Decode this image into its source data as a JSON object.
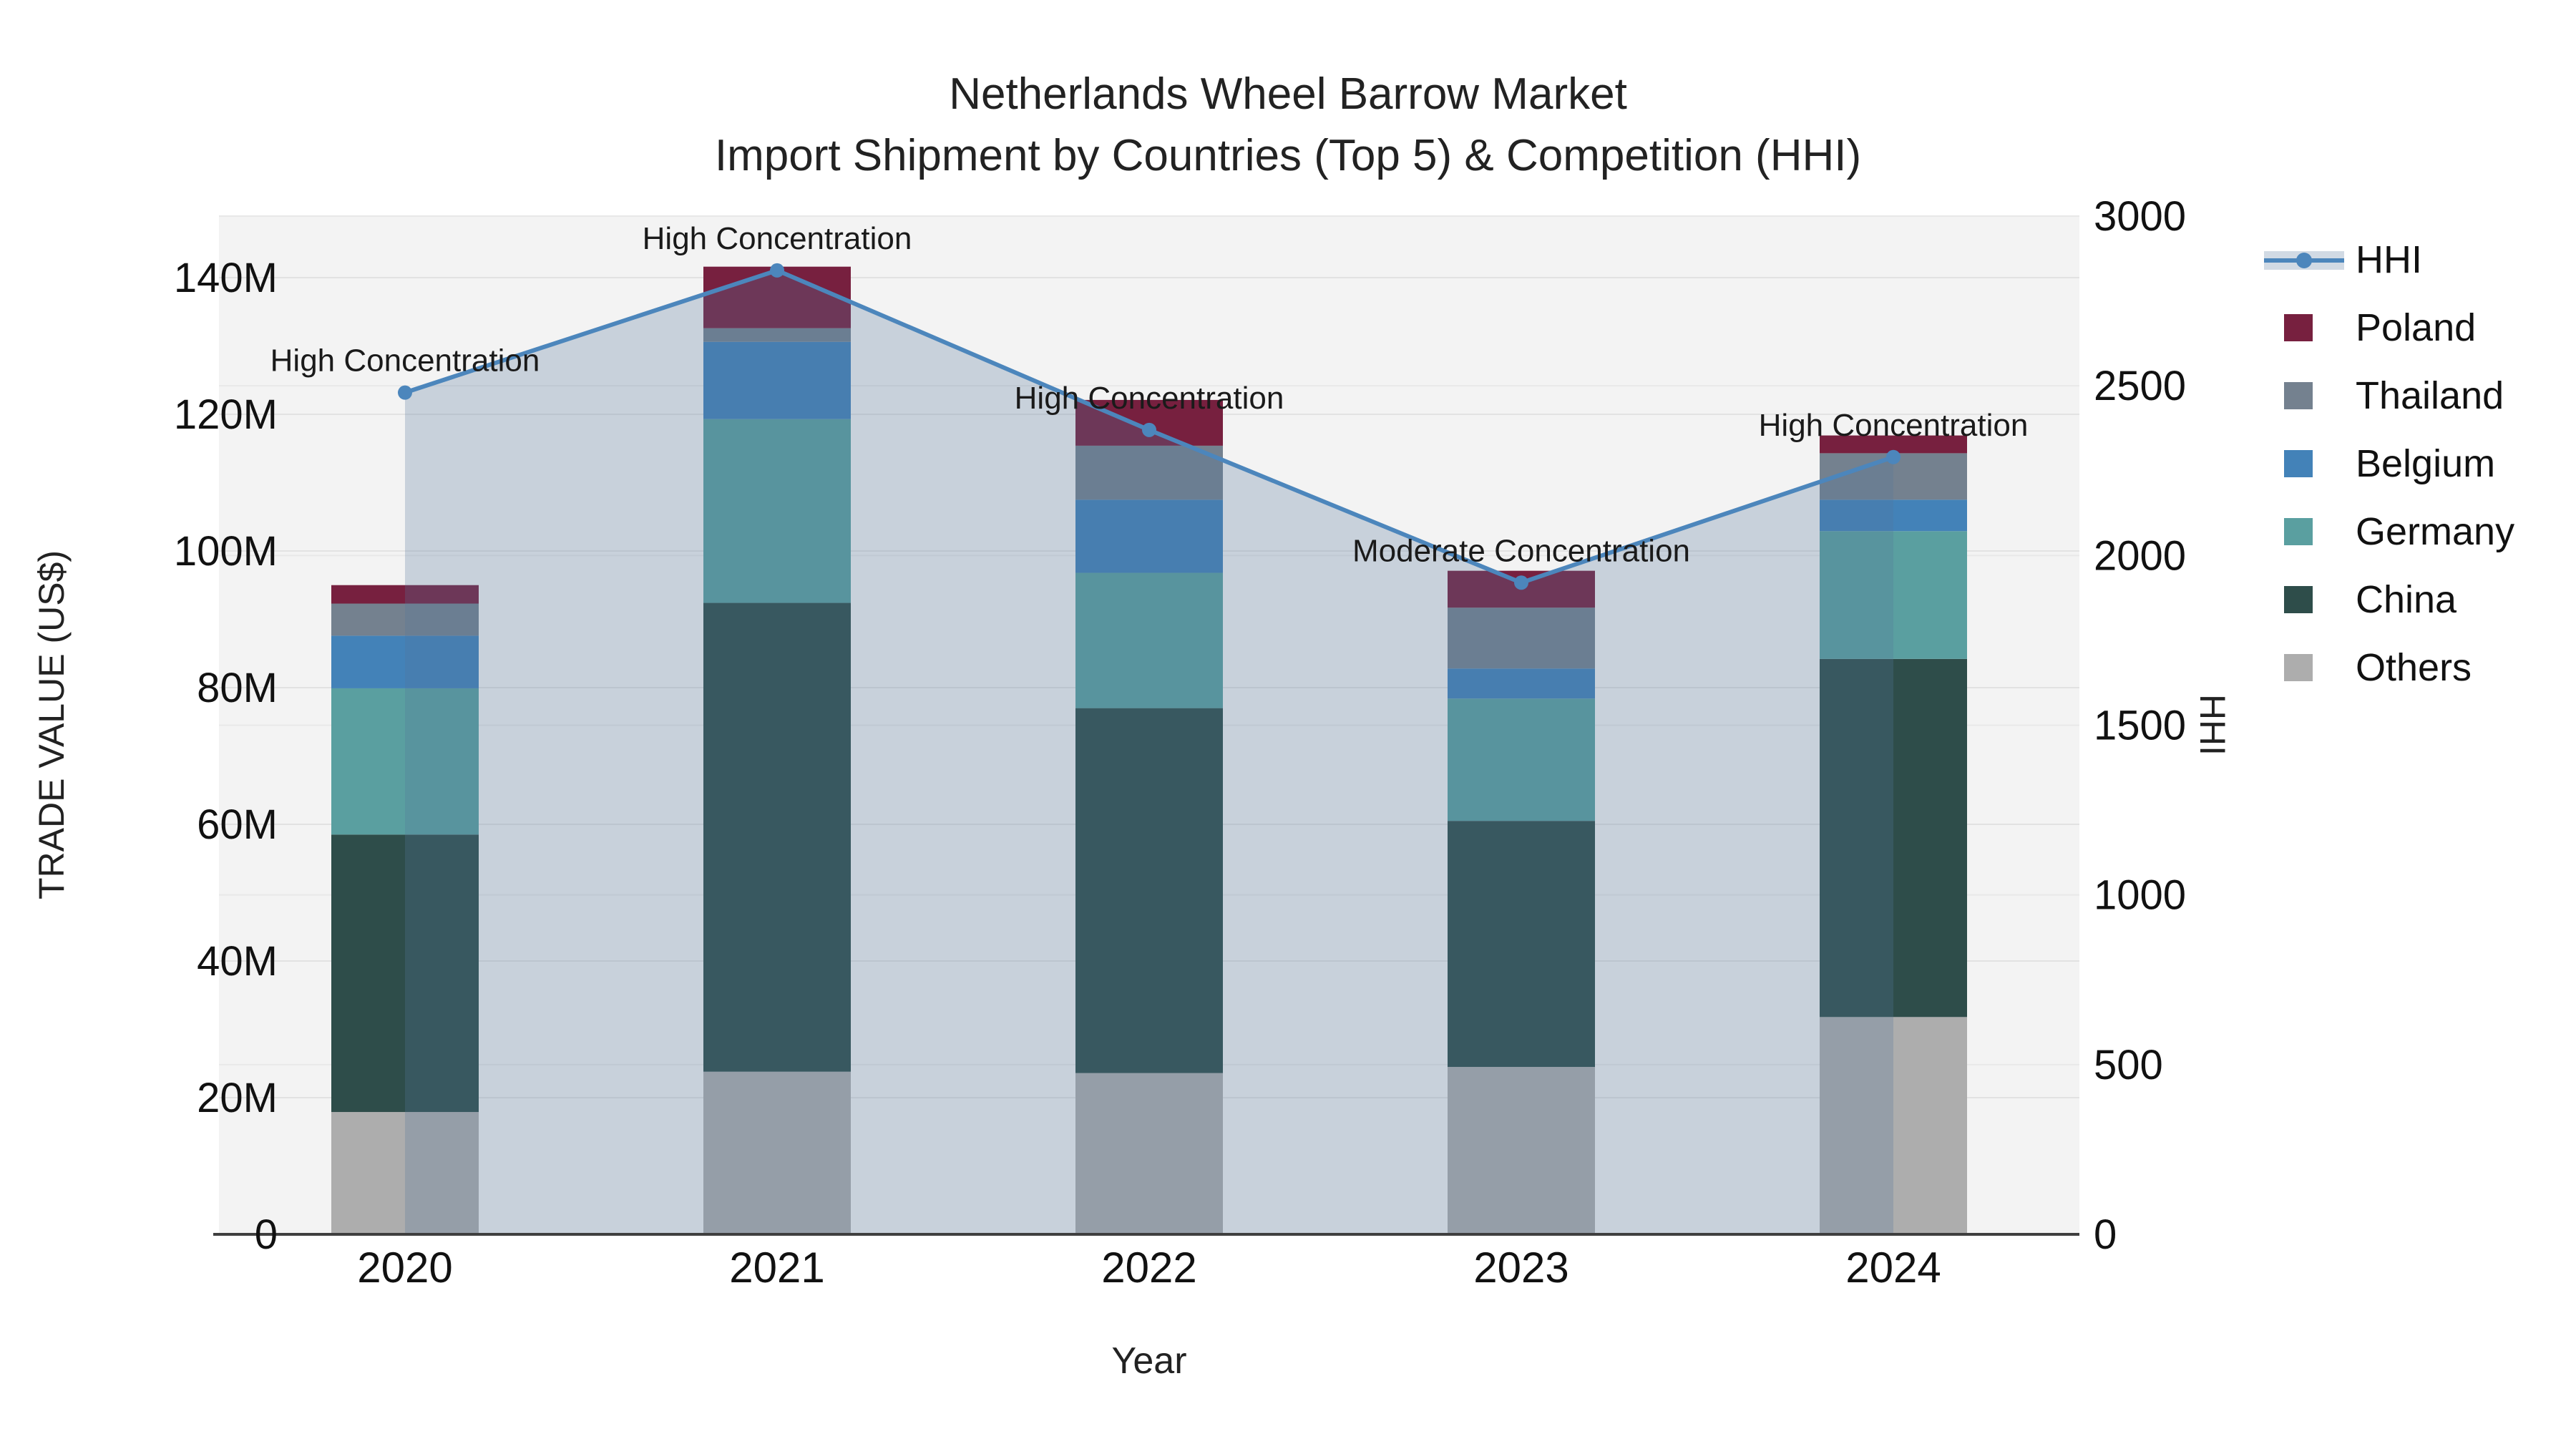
{
  "title": {
    "line1": "Netherlands Wheel Barrow Market",
    "line2": "Import Shipment by Countries (Top 5) & Competition (HHI)"
  },
  "axes": {
    "x": {
      "title": "Year",
      "categories": [
        "2020",
        "2021",
        "2022",
        "2023",
        "2024"
      ]
    },
    "y_left": {
      "title": "TRADE VALUE (US$)",
      "tick_labels": [
        "0",
        "20M",
        "40M",
        "60M",
        "80M",
        "100M",
        "120M",
        "140M"
      ],
      "tick_values": [
        0,
        20,
        40,
        60,
        80,
        100,
        120,
        140
      ],
      "range": [
        0,
        149
      ]
    },
    "y_right": {
      "title": "HHI",
      "tick_labels": [
        "0",
        "500",
        "1000",
        "1500",
        "2000",
        "2500",
        "3000"
      ],
      "tick_values": [
        0,
        500,
        1000,
        1500,
        2000,
        2500,
        3000
      ],
      "range": [
        0,
        3000
      ]
    }
  },
  "chart_data": {
    "type": "bar+line",
    "categories": [
      "2020",
      "2021",
      "2022",
      "2023",
      "2024"
    ],
    "bar_value_unit": "M US$ trade value",
    "stack_order_bottom_to_top": [
      "Others",
      "China",
      "Germany",
      "Belgium",
      "Thailand",
      "Poland"
    ],
    "series": [
      {
        "name": "Others",
        "color": "#ADADAD",
        "values": [
          17.9,
          23.8,
          23.6,
          24.5,
          31.8
        ]
      },
      {
        "name": "China",
        "color": "#2E4D4A",
        "values": [
          40.6,
          68.6,
          53.4,
          36.0,
          52.4
        ]
      },
      {
        "name": "Germany",
        "color": "#5A9FA0",
        "values": [
          21.4,
          26.9,
          19.8,
          17.9,
          18.7
        ]
      },
      {
        "name": "Belgium",
        "color": "#4382B8",
        "values": [
          7.7,
          11.3,
          10.7,
          4.4,
          4.6
        ]
      },
      {
        "name": "Thailand",
        "color": "#74818F",
        "values": [
          4.7,
          2.0,
          7.9,
          8.9,
          6.8
        ]
      },
      {
        "name": "Poland",
        "color": "#77203F",
        "values": [
          2.7,
          9.0,
          6.7,
          5.4,
          2.6
        ]
      }
    ],
    "bar_totals": [
      95.0,
      141.6,
      122.1,
      97.1,
      116.9
    ],
    "line": {
      "name": "HHI",
      "axis": "right",
      "color": "#4C86BC",
      "area_fill": "rgba(86,119,156,0.27)",
      "values": [
        2480,
        2840,
        2370,
        1920,
        2290
      ]
    },
    "annotations": [
      {
        "category": "2020",
        "text": "High Concentration"
      },
      {
        "category": "2021",
        "text": "High Concentration"
      },
      {
        "category": "2022",
        "text": "High Concentration"
      },
      {
        "category": "2023",
        "text": "Moderate Concentration"
      },
      {
        "category": "2024",
        "text": "High Concentration"
      }
    ],
    "legend_order": [
      "HHI",
      "Poland",
      "Thailand",
      "Belgium",
      "Germany",
      "China",
      "Others"
    ],
    "layout_hints": {
      "plot_bg": "#F3F3F3",
      "grid_color_left": "#E2E2E2",
      "grid_color_right": "#E8E8E8",
      "axis_line_color": "#3F3F3F",
      "legend_position": "right",
      "grid": "on"
    }
  }
}
